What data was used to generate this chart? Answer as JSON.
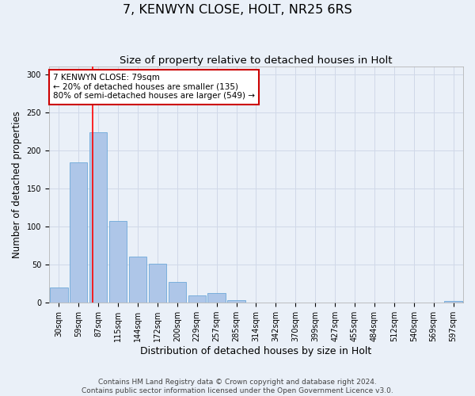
{
  "title": "7, KENWYN CLOSE, HOLT, NR25 6RS",
  "subtitle": "Size of property relative to detached houses in Holt",
  "xlabel": "Distribution of detached houses by size in Holt",
  "ylabel": "Number of detached properties",
  "bar_labels": [
    "30sqm",
    "59sqm",
    "87sqm",
    "115sqm",
    "144sqm",
    "172sqm",
    "200sqm",
    "229sqm",
    "257sqm",
    "285sqm",
    "314sqm",
    "342sqm",
    "370sqm",
    "399sqm",
    "427sqm",
    "455sqm",
    "484sqm",
    "512sqm",
    "540sqm",
    "569sqm",
    "597sqm"
  ],
  "bar_values": [
    20,
    184,
    224,
    107,
    61,
    51,
    27,
    10,
    13,
    3,
    0,
    0,
    0,
    0,
    0,
    0,
    0,
    0,
    0,
    0,
    2
  ],
  "bar_color": "#aec6e8",
  "bar_edge_color": "#5a9fd4",
  "grid_color": "#d0d8e8",
  "background_color": "#eaf0f8",
  "red_line_x": 1.72,
  "annotation_text": "7 KENWYN CLOSE: 79sqm\n← 20% of detached houses are smaller (135)\n80% of semi-detached houses are larger (549) →",
  "annotation_box_color": "#ffffff",
  "annotation_box_edge_color": "#cc0000",
  "footer_line1": "Contains HM Land Registry data © Crown copyright and database right 2024.",
  "footer_line2": "Contains public sector information licensed under the Open Government Licence v3.0.",
  "ylim": [
    0,
    310
  ],
  "yticks": [
    0,
    50,
    100,
    150,
    200,
    250,
    300
  ],
  "title_fontsize": 11.5,
  "subtitle_fontsize": 9.5,
  "ylabel_fontsize": 8.5,
  "xlabel_fontsize": 9,
  "tick_fontsize": 7,
  "footer_fontsize": 6.5,
  "annotation_fontsize": 7.5
}
